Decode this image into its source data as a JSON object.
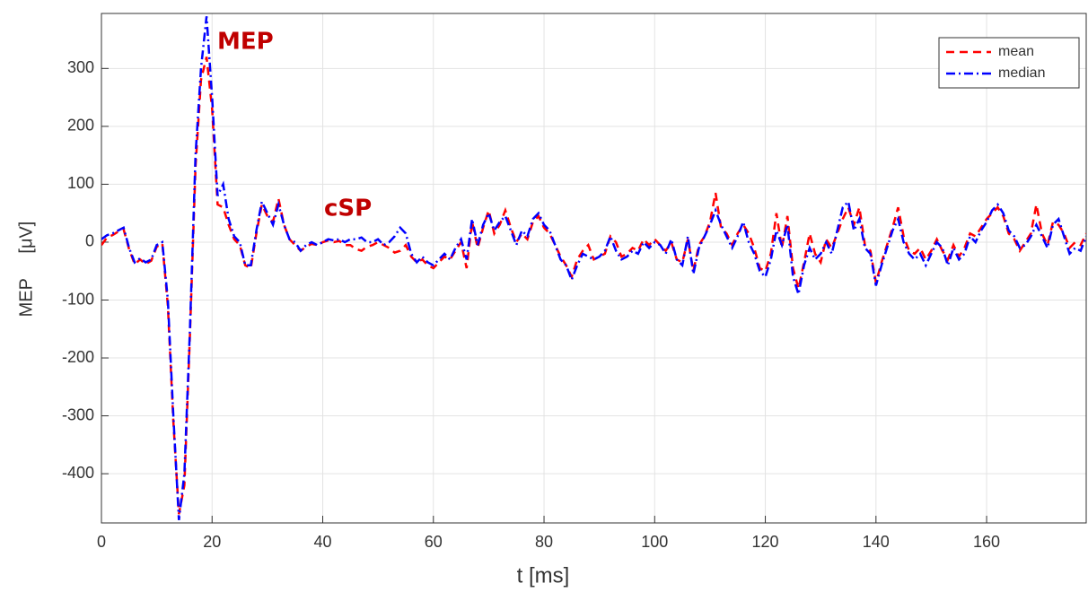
{
  "chart_data": {
    "type": "line",
    "x_label": "t [ms]",
    "y_label": "MEP     [μV]",
    "annotations": [
      "MEP",
      "cSP"
    ],
    "xlim": [
      0,
      178
    ],
    "ylim": [
      -485,
      395
    ],
    "xticks": [
      0,
      20,
      40,
      60,
      80,
      100,
      120,
      140,
      160
    ],
    "yticks": [
      -400,
      -300,
      -200,
      -100,
      0,
      100,
      200,
      300
    ],
    "grid": true,
    "legend": "upper right",
    "x": [
      0,
      1,
      2,
      3,
      4,
      5,
      6,
      7,
      8,
      9,
      10,
      11,
      12,
      13,
      14,
      15,
      16,
      17,
      18,
      19,
      20,
      21,
      22,
      23,
      24,
      25,
      26,
      27,
      28,
      29,
      30,
      31,
      32,
      33,
      34,
      35,
      36,
      37,
      38,
      39,
      40,
      41,
      42,
      43,
      44,
      45,
      46,
      47,
      48,
      49,
      50,
      51,
      52,
      53,
      54,
      55,
      56,
      57,
      58,
      59,
      60,
      61,
      62,
      63,
      64,
      65,
      66,
      67,
      68,
      69,
      70,
      71,
      72,
      73,
      74,
      75,
      76,
      77,
      78,
      79,
      80,
      81,
      82,
      83,
      84,
      85,
      86,
      87,
      88,
      89,
      90,
      91,
      92,
      93,
      94,
      95,
      96,
      97,
      98,
      99,
      100,
      101,
      102,
      103,
      104,
      105,
      106,
      107,
      108,
      109,
      110,
      111,
      112,
      113,
      114,
      115,
      116,
      117,
      118,
      119,
      120,
      121,
      122,
      123,
      124,
      125,
      126,
      127,
      128,
      129,
      130,
      131,
      132,
      133,
      134,
      135,
      136,
      137,
      138,
      139,
      140,
      141,
      142,
      143,
      144,
      145,
      146,
      147,
      148,
      149,
      150,
      151,
      152,
      153,
      154,
      155,
      156,
      157,
      158,
      159,
      160,
      161,
      162,
      163,
      164,
      165,
      166,
      167,
      168,
      169,
      170,
      171,
      172,
      173,
      174,
      175,
      176,
      177,
      178
    ],
    "series": [
      {
        "name": "mean",
        "color": "#ff0000",
        "dash": "9,6",
        "values": [
          -5,
          8,
          12,
          18,
          22,
          -12,
          -38,
          -30,
          -38,
          -32,
          -8,
          -2,
          -110,
          -310,
          -470,
          -420,
          -160,
          130,
          280,
          320,
          230,
          65,
          60,
          30,
          5,
          -5,
          -40,
          -45,
          15,
          65,
          45,
          35,
          75,
          30,
          5,
          -5,
          -15,
          -8,
          -3,
          -5,
          0,
          3,
          0,
          2,
          -5,
          -5,
          -12,
          -15,
          -8,
          -5,
          0,
          -5,
          -10,
          -18,
          -15,
          -5,
          -25,
          -35,
          -30,
          -40,
          -45,
          -35,
          -25,
          -30,
          -15,
          0,
          -45,
          35,
          -10,
          25,
          55,
          15,
          30,
          55,
          25,
          0,
          15,
          5,
          35,
          45,
          25,
          15,
          -5,
          -25,
          -40,
          -60,
          -30,
          -15,
          -5,
          -30,
          -25,
          -20,
          10,
          0,
          -25,
          -20,
          -10,
          -15,
          5,
          -5,
          5,
          -5,
          -15,
          0,
          -30,
          -35,
          5,
          -50,
          -5,
          10,
          35,
          85,
          25,
          15,
          -5,
          15,
          30,
          15,
          -10,
          -45,
          -50,
          -20,
          50,
          -10,
          45,
          -45,
          -80,
          -35,
          15,
          -20,
          -35,
          5,
          -10,
          15,
          40,
          60,
          30,
          60,
          -5,
          -15,
          -70,
          -35,
          -5,
          25,
          60,
          10,
          -15,
          -20,
          -10,
          -30,
          -15,
          5,
          -15,
          -30,
          -5,
          -25,
          -10,
          15,
          10,
          25,
          40,
          50,
          60,
          45,
          15,
          5,
          -15,
          0,
          15,
          65,
          15,
          -5,
          35,
          30,
          15,
          -10,
          0,
          -5,
          15
        ]
      },
      {
        "name": "median",
        "color": "#0000ff",
        "dash": "10,4,2,4",
        "values": [
          5,
          12,
          15,
          20,
          25,
          -10,
          -35,
          -28,
          -35,
          -30,
          -5,
          0,
          -100,
          -300,
          -480,
          -400,
          -150,
          150,
          300,
          390,
          250,
          80,
          100,
          40,
          10,
          0,
          -40,
          -40,
          20,
          70,
          50,
          30,
          65,
          30,
          5,
          0,
          -15,
          -5,
          0,
          -5,
          0,
          5,
          3,
          5,
          0,
          5,
          5,
          8,
          0,
          0,
          5,
          -5,
          0,
          10,
          25,
          15,
          -20,
          -35,
          -25,
          -35,
          -40,
          -30,
          -20,
          -30,
          -10,
          5,
          -30,
          40,
          -5,
          30,
          50,
          20,
          35,
          45,
          20,
          -5,
          20,
          10,
          40,
          50,
          30,
          20,
          -5,
          -30,
          -40,
          -65,
          -40,
          -20,
          -25,
          -30,
          -25,
          -15,
          10,
          -15,
          -30,
          -25,
          -15,
          -20,
          0,
          -10,
          0,
          -5,
          -20,
          5,
          -30,
          -40,
          10,
          -55,
          -10,
          10,
          30,
          55,
          30,
          10,
          -10,
          10,
          35,
          0,
          -20,
          -50,
          -60,
          -30,
          20,
          -5,
          30,
          -60,
          -90,
          -40,
          -10,
          -30,
          -20,
          0,
          -20,
          20,
          60,
          70,
          20,
          40,
          -10,
          -20,
          -75,
          -40,
          -10,
          20,
          40,
          0,
          -20,
          -30,
          -20,
          -40,
          -20,
          0,
          -10,
          -40,
          -10,
          -30,
          -20,
          10,
          0,
          20,
          35,
          55,
          65,
          50,
          20,
          10,
          -10,
          -5,
          10,
          30,
          10,
          -10,
          30,
          40,
          10,
          -20,
          -10,
          -15,
          10
        ]
      }
    ]
  }
}
